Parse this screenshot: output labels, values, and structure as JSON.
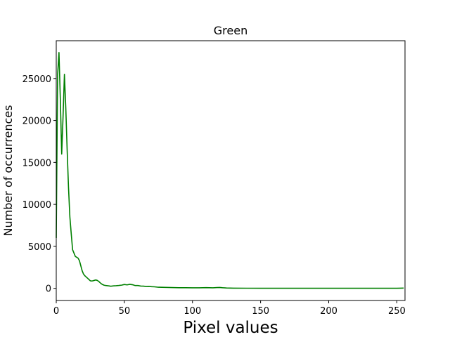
{
  "chart_data": {
    "type": "line",
    "title": "Green",
    "xlabel": "Pixel values",
    "ylabel": "Number of occurrences",
    "xlim": [
      0,
      256
    ],
    "ylim": [
      -1450,
      29500
    ],
    "xticks": [
      0,
      50,
      100,
      150,
      200,
      250
    ],
    "yticks": [
      0,
      5000,
      10000,
      15000,
      20000,
      25000
    ],
    "grid": false,
    "series": [
      {
        "color": "#008000",
        "x": [
          0,
          1,
          2,
          3,
          4,
          5,
          6,
          7,
          8,
          9,
          10,
          11,
          12,
          13,
          14,
          15,
          16,
          17,
          18,
          19,
          20,
          21,
          22,
          23,
          24,
          25,
          26,
          27,
          28,
          29,
          30,
          31,
          32,
          33,
          34,
          35,
          36,
          37,
          38,
          39,
          40,
          42,
          44,
          46,
          48,
          50,
          52,
          54,
          56,
          58,
          60,
          62,
          64,
          66,
          68,
          70,
          72,
          75,
          80,
          85,
          90,
          95,
          100,
          105,
          110,
          115,
          118,
          120,
          122,
          125,
          130,
          140,
          150,
          160,
          170,
          180,
          190,
          200,
          210,
          220,
          230,
          240,
          250,
          253,
          255
        ],
        "values": [
          6000,
          25500,
          28100,
          22500,
          16000,
          20500,
          25500,
          21500,
          16500,
          12000,
          8500,
          6500,
          4600,
          4200,
          3800,
          3700,
          3600,
          3300,
          2700,
          2100,
          1700,
          1500,
          1350,
          1200,
          1050,
          900,
          870,
          900,
          950,
          1000,
          950,
          850,
          700,
          550,
          450,
          380,
          340,
          320,
          300,
          280,
          250,
          290,
          310,
          340,
          380,
          460,
          410,
          480,
          430,
          330,
          330,
          270,
          260,
          220,
          230,
          200,
          180,
          130,
          110,
          90,
          70,
          70,
          60,
          60,
          80,
          60,
          90,
          100,
          70,
          40,
          20,
          15,
          10,
          10,
          5,
          5,
          5,
          5,
          5,
          5,
          5,
          5,
          5,
          20,
          30
        ]
      }
    ]
  }
}
